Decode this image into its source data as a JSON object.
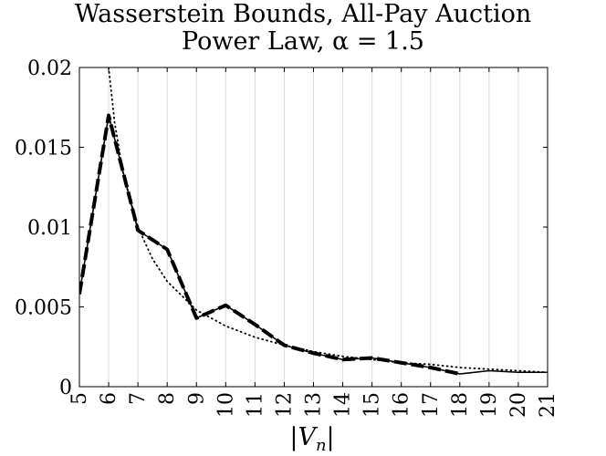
{
  "chart_data": {
    "type": "line",
    "title": "Wasserstein Bounds, All-Pay Auction",
    "subtitle": "Power Law, α = 1.5",
    "xlabel": "|V_n|",
    "ylabel": "",
    "xlim": [
      5,
      21
    ],
    "ylim": [
      0,
      0.02
    ],
    "grid": "vertical",
    "x_ticks": [
      "5",
      "6",
      "7",
      "8",
      "9",
      "10",
      "11",
      "12",
      "13",
      "14",
      "15",
      "16",
      "17",
      "18",
      "19",
      "20",
      "21"
    ],
    "y_ticks": [
      "0",
      "0.005",
      "0.01",
      "0.015",
      "0.02"
    ],
    "series": [
      {
        "style": "solid",
        "x": [
          5,
          6,
          7,
          8,
          9,
          10,
          11,
          12,
          13,
          14,
          15,
          16,
          17,
          18,
          19,
          20,
          21
        ],
        "values": [
          0.0058,
          0.017,
          0.0098,
          0.0086,
          0.0043,
          0.0051,
          0.0039,
          0.0026,
          0.0021,
          0.0017,
          0.0018,
          0.0015,
          0.0012,
          0.0008,
          0.001,
          0.0009,
          0.0009
        ]
      },
      {
        "style": "dashed",
        "x": [
          5,
          6,
          7,
          8,
          9,
          10,
          11,
          12,
          13,
          14,
          15,
          16,
          17,
          18
        ],
        "values": [
          0.0058,
          0.017,
          0.0098,
          0.0086,
          0.0043,
          0.0051,
          0.0039,
          0.0026,
          0.0021,
          0.0017,
          0.0018,
          0.0015,
          0.0012,
          0.0008
        ]
      },
      {
        "style": "dotted",
        "x": [
          6.0,
          6.2,
          6.5,
          7,
          7.5,
          8,
          9,
          10,
          11,
          12,
          13,
          14,
          15,
          16,
          17,
          18,
          19,
          20,
          21
        ],
        "values": [
          0.02,
          0.0166,
          0.0133,
          0.01,
          0.008,
          0.0066,
          0.0048,
          0.0038,
          0.0031,
          0.0026,
          0.0022,
          0.0019,
          0.0017,
          0.0015,
          0.0014,
          0.0012,
          0.0011,
          0.001,
          0.0009
        ]
      }
    ]
  }
}
